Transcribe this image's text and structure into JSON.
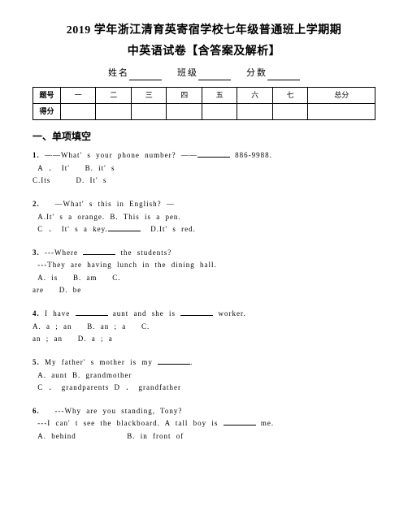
{
  "title_line1": "2019 学年浙江清育英寄宿学校七年级普通班上学期期",
  "title_line2": "中英语试卷【含答案及解析】",
  "info": {
    "name_label": "姓名",
    "class_label": "班级",
    "score_label": "分数"
  },
  "score_table": {
    "row1_label": "题号",
    "cols": [
      "一",
      "二",
      "三",
      "四",
      "五",
      "六",
      "七",
      "总分"
    ],
    "row2_label": "得分"
  },
  "section1": "一、单项填空",
  "q1": {
    "num": "1.",
    "stem_a": "——What' s   your   phone   number?  ——",
    "stem_b": "886-9988.",
    "optA": "A ． It'",
    "optB": "B.   it' s",
    "optC": "C.Its",
    "optD": "D.   It' s"
  },
  "q2": {
    "num": "2.",
    "stem": "—What' s   this   in   English?   —",
    "lineA": "A.It' s a orange.   B. This is a pen.",
    "lineB": "C ． It' s   a   key.",
    "optD": "D.It' s   red."
  },
  "q3": {
    "num": "3.",
    "stem_a": "---Where",
    "stem_b": "the   students?",
    "line2": "---They   are   having   lunch   in   the   dining   hall.",
    "optA": "A.   is",
    "optB": "B.   am",
    "optC": "C.",
    "optC2": "are",
    "optD": "D.  be"
  },
  "q4": {
    "num": "4.",
    "stem_a": "I   have",
    "stem_b": "aunt   and   she   is",
    "stem_c": "worker.",
    "optA": "A.   a  ;  an",
    "optB": "B.   an  ;  a",
    "optC": "C.",
    "optC2": "an  ;  an",
    "optD": "D.   a  ;  a"
  },
  "q5": {
    "num": "5.",
    "stem": "My   father' s   mother   is   my",
    "lineA": "A. aunt            B. grandmother",
    "lineB": "C ． grandparents   D ． grandfather"
  },
  "q6": {
    "num": "6.",
    "stem": "---Why   are   you   standing,   Tony?",
    "line2a": "---I   can' t   see   the   blackboard.   A   tall   boy   is",
    "line2b": "me.",
    "optA": "A. behind",
    "optB": "B. in front of"
  }
}
